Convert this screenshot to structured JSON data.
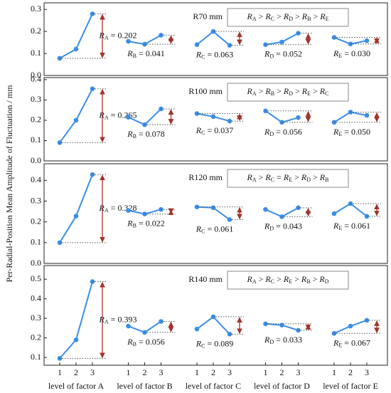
{
  "y_label": "Per-Radial-Position Mean Amplitude of Fluctuation / mm",
  "x_labels": [
    "level of factor A",
    "level of factor B",
    "level of factor C",
    "level of factor D",
    "level of factor E"
  ],
  "x_ticks": [
    1,
    2,
    3
  ],
  "chart_data": [
    {
      "type": "line",
      "title": "R70 mm",
      "ranking": "RA > RC > RD > RB > RE",
      "color": "#3a8ee6",
      "range_color": "#a0352b",
      "ylim": [
        0,
        0.33
      ],
      "yticks": [
        {
          "value": 0,
          "label": "0.0"
        },
        0.1,
        0.2,
        0.3
      ],
      "series": [
        {
          "values": [
            0.078,
            0.12,
            0.28
          ],
          "range": 0.202,
          "range_label": "RA = 0.202"
        },
        {
          "values": [
            0.155,
            0.142,
            0.183
          ],
          "range": 0.041,
          "range_label": "RB = 0.041"
        },
        {
          "values": [
            0.14,
            0.2,
            0.137
          ],
          "range": 0.063,
          "range_label": "RC = 0.063"
        },
        {
          "values": [
            0.14,
            0.152,
            0.192
          ],
          "range": 0.052,
          "range_label": "RD = 0.052"
        },
        {
          "values": [
            0.173,
            0.143,
            0.158
          ],
          "range": 0.03,
          "range_label": "RE = 0.030"
        }
      ]
    },
    {
      "type": "line",
      "title": "R100 mm",
      "ranking": "RA > RB > RD > RE > RC",
      "color": "#3a8ee6",
      "range_color": "#a0352b",
      "ylim": [
        0,
        0.41
      ],
      "yticks": [
        {
          "value": 0,
          "label": "0.0"
        },
        0.1,
        0.2,
        0.3,
        0.4
      ],
      "series": [
        {
          "values": [
            0.09,
            0.2,
            0.355
          ],
          "range": 0.265,
          "range_label": "RA = 0.265"
        },
        {
          "values": [
            0.215,
            0.178,
            0.256
          ],
          "range": 0.078,
          "range_label": "RB = 0.078"
        },
        {
          "values": [
            0.233,
            0.218,
            0.196
          ],
          "range": 0.037,
          "range_label": "RC = 0.037"
        },
        {
          "values": [
            0.246,
            0.19,
            0.213
          ],
          "range": 0.056,
          "range_label": "RD = 0.056"
        },
        {
          "values": [
            0.19,
            0.24,
            0.224
          ],
          "range": 0.05,
          "range_label": "RE = 0.050"
        }
      ]
    },
    {
      "type": "line",
      "title": "R120 mm",
      "ranking": "RA > RC = RE > RD > RB",
      "color": "#3a8ee6",
      "range_color": "#a0352b",
      "ylim": [
        0,
        0.48
      ],
      "yticks": [
        {
          "value": 0,
          "label": "0.0"
        },
        0.1,
        0.2,
        0.3,
        0.4
      ],
      "series": [
        {
          "values": [
            0.1,
            0.228,
            0.428
          ],
          "range": 0.328,
          "range_label": "RA = 0.328"
        },
        {
          "values": [
            0.255,
            0.238,
            0.26
          ],
          "range": 0.022,
          "range_label": "RB = 0.022"
        },
        {
          "values": [
            0.272,
            0.268,
            0.211
          ],
          "range": 0.061,
          "range_label": "RC = 0.061"
        },
        {
          "values": [
            0.26,
            0.225,
            0.268
          ],
          "range": 0.043,
          "range_label": "RD = 0.043"
        },
        {
          "values": [
            0.24,
            0.288,
            0.227
          ],
          "range": 0.061,
          "range_label": "RE = 0.061"
        }
      ]
    },
    {
      "type": "line",
      "title": "R140 mm",
      "ranking": "RA > RC > RE > RB > RD",
      "color": "#3a8ee6",
      "range_color": "#a0352b",
      "ylim": [
        0.06,
        0.57
      ],
      "yticks": [
        0.1,
        0.2,
        0.3,
        0.4,
        0.5
      ],
      "series": [
        {
          "values": [
            0.095,
            0.19,
            0.488
          ],
          "range": 0.393,
          "range_label": "RA = 0.393"
        },
        {
          "values": [
            0.26,
            0.228,
            0.284
          ],
          "range": 0.056,
          "range_label": "RB = 0.056"
        },
        {
          "values": [
            0.245,
            0.308,
            0.219
          ],
          "range": 0.089,
          "range_label": "RC = 0.089"
        },
        {
          "values": [
            0.272,
            0.265,
            0.239
          ],
          "range": 0.033,
          "range_label": "RD = 0.033"
        },
        {
          "values": [
            0.223,
            0.26,
            0.29
          ],
          "range": 0.067,
          "range_label": "RE = 0.067"
        }
      ]
    }
  ]
}
